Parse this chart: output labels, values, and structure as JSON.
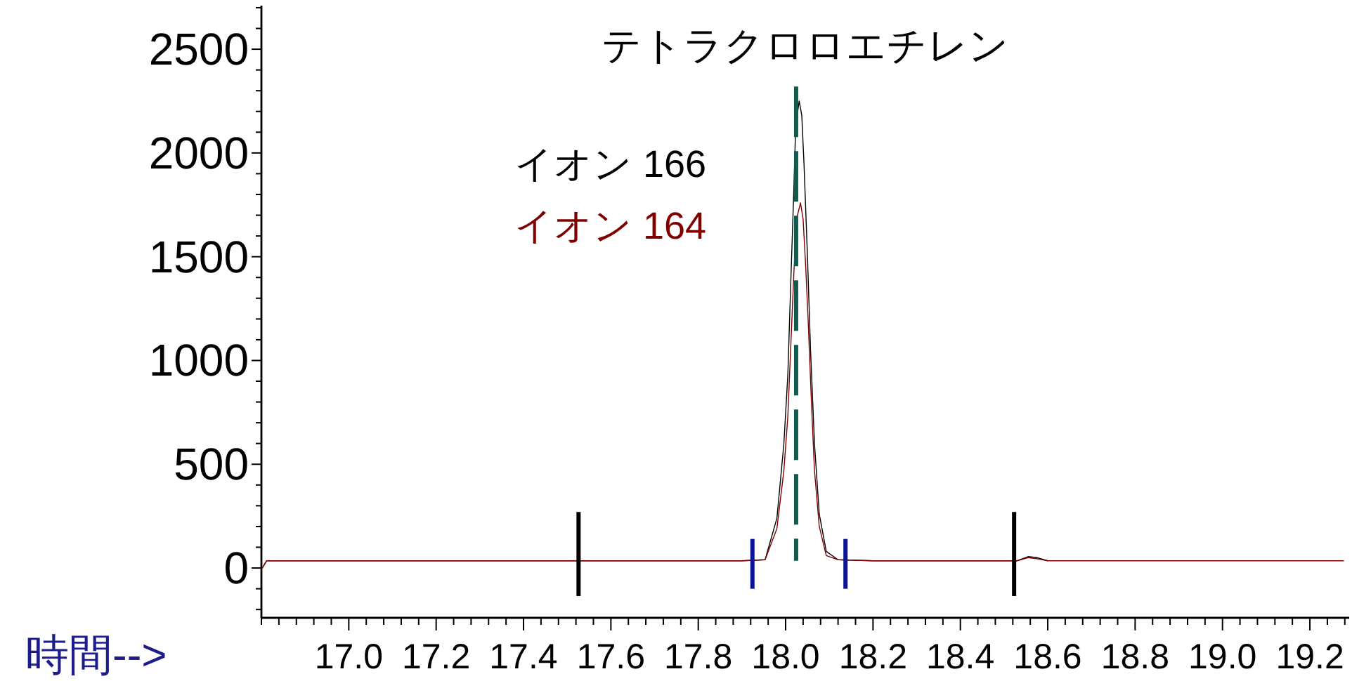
{
  "chart_data": {
    "type": "line",
    "title": "テトラクロロエチレン",
    "xlabel": "時間-->",
    "legend": "top left",
    "xlim": [
      16.8,
      19.29
    ],
    "xticks": [
      {
        "value": 16.8,
        "label": null
      },
      {
        "value": 16.84,
        "label": null
      },
      {
        "value": 16.88,
        "label": null
      },
      {
        "value": 16.92,
        "label": null
      },
      {
        "value": 16.96,
        "label": null
      },
      {
        "value": 17.0,
        "label": "17.0"
      },
      {
        "value": 17.04,
        "label": null
      },
      {
        "value": 17.08,
        "label": null
      },
      {
        "value": 17.12,
        "label": null
      },
      {
        "value": 17.16,
        "label": null
      },
      {
        "value": 17.2,
        "label": "17.2"
      },
      {
        "value": 17.24,
        "label": null
      },
      {
        "value": 17.28,
        "label": null
      },
      {
        "value": 17.32,
        "label": null
      },
      {
        "value": 17.36,
        "label": null
      },
      {
        "value": 17.4,
        "label": "17.4"
      },
      {
        "value": 17.44,
        "label": null
      },
      {
        "value": 17.48,
        "label": null
      },
      {
        "value": 17.52,
        "label": null
      },
      {
        "value": 17.56,
        "label": null
      },
      {
        "value": 17.6,
        "label": "17.6"
      },
      {
        "value": 17.64,
        "label": null
      },
      {
        "value": 17.68,
        "label": null
      },
      {
        "value": 17.72,
        "label": null
      },
      {
        "value": 17.76,
        "label": null
      },
      {
        "value": 17.8,
        "label": "17.8"
      },
      {
        "value": 17.84,
        "label": null
      },
      {
        "value": 17.88,
        "label": null
      },
      {
        "value": 17.92,
        "label": null
      },
      {
        "value": 17.96,
        "label": null
      },
      {
        "value": 18.0,
        "label": "18.0"
      },
      {
        "value": 18.04,
        "label": null
      },
      {
        "value": 18.08,
        "label": null
      },
      {
        "value": 18.12,
        "label": null
      },
      {
        "value": 18.16,
        "label": null
      },
      {
        "value": 18.2,
        "label": "18.2"
      },
      {
        "value": 18.24,
        "label": null
      },
      {
        "value": 18.28,
        "label": null
      },
      {
        "value": 18.32,
        "label": null
      },
      {
        "value": 18.36,
        "label": null
      },
      {
        "value": 18.4,
        "label": "18.4"
      },
      {
        "value": 18.44,
        "label": null
      },
      {
        "value": 18.48,
        "label": null
      },
      {
        "value": 18.52,
        "label": null
      },
      {
        "value": 18.56,
        "label": null
      },
      {
        "value": 18.6,
        "label": "18.6"
      },
      {
        "value": 18.64,
        "label": null
      },
      {
        "value": 18.68,
        "label": null
      },
      {
        "value": 18.72,
        "label": null
      },
      {
        "value": 18.76,
        "label": null
      },
      {
        "value": 18.8,
        "label": "18.8"
      },
      {
        "value": 18.84,
        "label": null
      },
      {
        "value": 18.88,
        "label": null
      },
      {
        "value": 18.92,
        "label": null
      },
      {
        "value": 18.96,
        "label": null
      },
      {
        "value": 19.0,
        "label": "19.0"
      },
      {
        "value": 19.04,
        "label": null
      },
      {
        "value": 19.08,
        "label": null
      },
      {
        "value": 19.12,
        "label": null
      },
      {
        "value": 19.16,
        "label": null
      },
      {
        "value": 19.2,
        "label": "19.2"
      },
      {
        "value": 19.24,
        "label": null
      },
      {
        "value": 19.28,
        "label": null
      }
    ],
    "ylim": [
      -240,
      2710
    ],
    "yticks": [
      {
        "value": -200,
        "label": null
      },
      {
        "value": -100,
        "label": null
      },
      0,
      {
        "value": 100,
        "label": null
      },
      {
        "value": 200,
        "label": null
      },
      {
        "value": 300,
        "label": null
      },
      {
        "value": 400,
        "label": null
      },
      500,
      {
        "value": 600,
        "label": null
      },
      {
        "value": 700,
        "label": null
      },
      {
        "value": 800,
        "label": null
      },
      {
        "value": 900,
        "label": null
      },
      1000,
      {
        "value": 1100,
        "label": null
      },
      {
        "value": 1200,
        "label": null
      },
      {
        "value": 1300,
        "label": null
      },
      {
        "value": 1400,
        "label": null
      },
      1500,
      {
        "value": 1600,
        "label": null
      },
      {
        "value": 1700,
        "label": null
      },
      {
        "value": 1800,
        "label": null
      },
      {
        "value": 1900,
        "label": null
      },
      2000,
      {
        "value": 2100,
        "label": null
      },
      {
        "value": 2200,
        "label": null
      },
      {
        "value": 2300,
        "label": null
      },
      {
        "value": 2400,
        "label": null
      },
      2500,
      {
        "value": 2600,
        "label": null
      },
      {
        "value": 2700,
        "label": null
      }
    ],
    "series": [
      {
        "name": "イオン 166",
        "color": "#000000",
        "x": [
          16.802,
          16.812,
          16.9,
          17.0,
          17.1,
          17.2,
          17.3,
          17.4,
          17.5,
          17.6,
          17.7,
          17.8,
          17.9,
          17.953,
          17.98,
          17.996,
          18.005,
          18.012,
          18.019,
          18.023,
          18.031,
          18.037,
          18.042,
          18.05,
          18.057,
          18.066,
          18.077,
          18.093,
          18.12,
          18.2,
          18.3,
          18.4,
          18.5,
          18.53,
          18.555,
          18.575,
          18.6
        ],
        "values": [
          0,
          35,
          35,
          35,
          35,
          35,
          35,
          35,
          35,
          35,
          35,
          35,
          35,
          40,
          240,
          600,
          930,
          1390,
          1840,
          2130,
          2250,
          2180,
          1950,
          1500,
          1050,
          600,
          260,
          80,
          40,
          35,
          35,
          35,
          35,
          35,
          55,
          50,
          35
        ]
      },
      {
        "name": "イオン 164",
        "color": "#800000",
        "x": [
          16.802,
          16.812,
          16.9,
          17.0,
          17.1,
          17.2,
          17.3,
          17.4,
          17.5,
          17.6,
          17.7,
          17.8,
          17.9,
          17.953,
          17.98,
          17.996,
          18.005,
          18.012,
          18.019,
          18.026,
          18.034,
          18.04,
          18.046,
          18.052,
          18.059,
          18.066,
          18.077,
          18.093,
          18.12,
          18.2,
          18.3,
          18.4,
          18.5,
          18.53,
          18.555,
          18.575,
          18.6,
          18.7,
          18.8,
          18.9,
          19.0,
          19.1,
          19.2,
          19.278
        ],
        "values": [
          0,
          35,
          35,
          35,
          35,
          35,
          35,
          35,
          35,
          35,
          35,
          35,
          35,
          40,
          190,
          470,
          730,
          1080,
          1430,
          1690,
          1760,
          1680,
          1450,
          1170,
          800,
          470,
          200,
          60,
          40,
          35,
          35,
          35,
          35,
          35,
          50,
          45,
          35,
          35,
          35,
          35,
          35,
          35,
          35,
          35
        ]
      },
      {
        "color": "#000000",
        "x": [
          17.526,
          17.526
        ],
        "values": [
          270,
          -135
        ]
      },
      {
        "color": "#000000",
        "x": [
          18.523,
          18.523
        ],
        "values": [
          270,
          -135
        ]
      },
      {
        "color": "#0a1496",
        "x": [
          17.924,
          17.924
        ],
        "values": [
          140,
          -100
        ]
      },
      {
        "color": "#0a1496",
        "x": [
          18.137,
          18.137
        ],
        "values": [
          140,
          -100
        ]
      },
      {
        "color": "#105a50",
        "line_style": "dashed",
        "x": [
          18.024,
          18.024
        ],
        "values": [
          2320,
          35
        ]
      }
    ]
  }
}
